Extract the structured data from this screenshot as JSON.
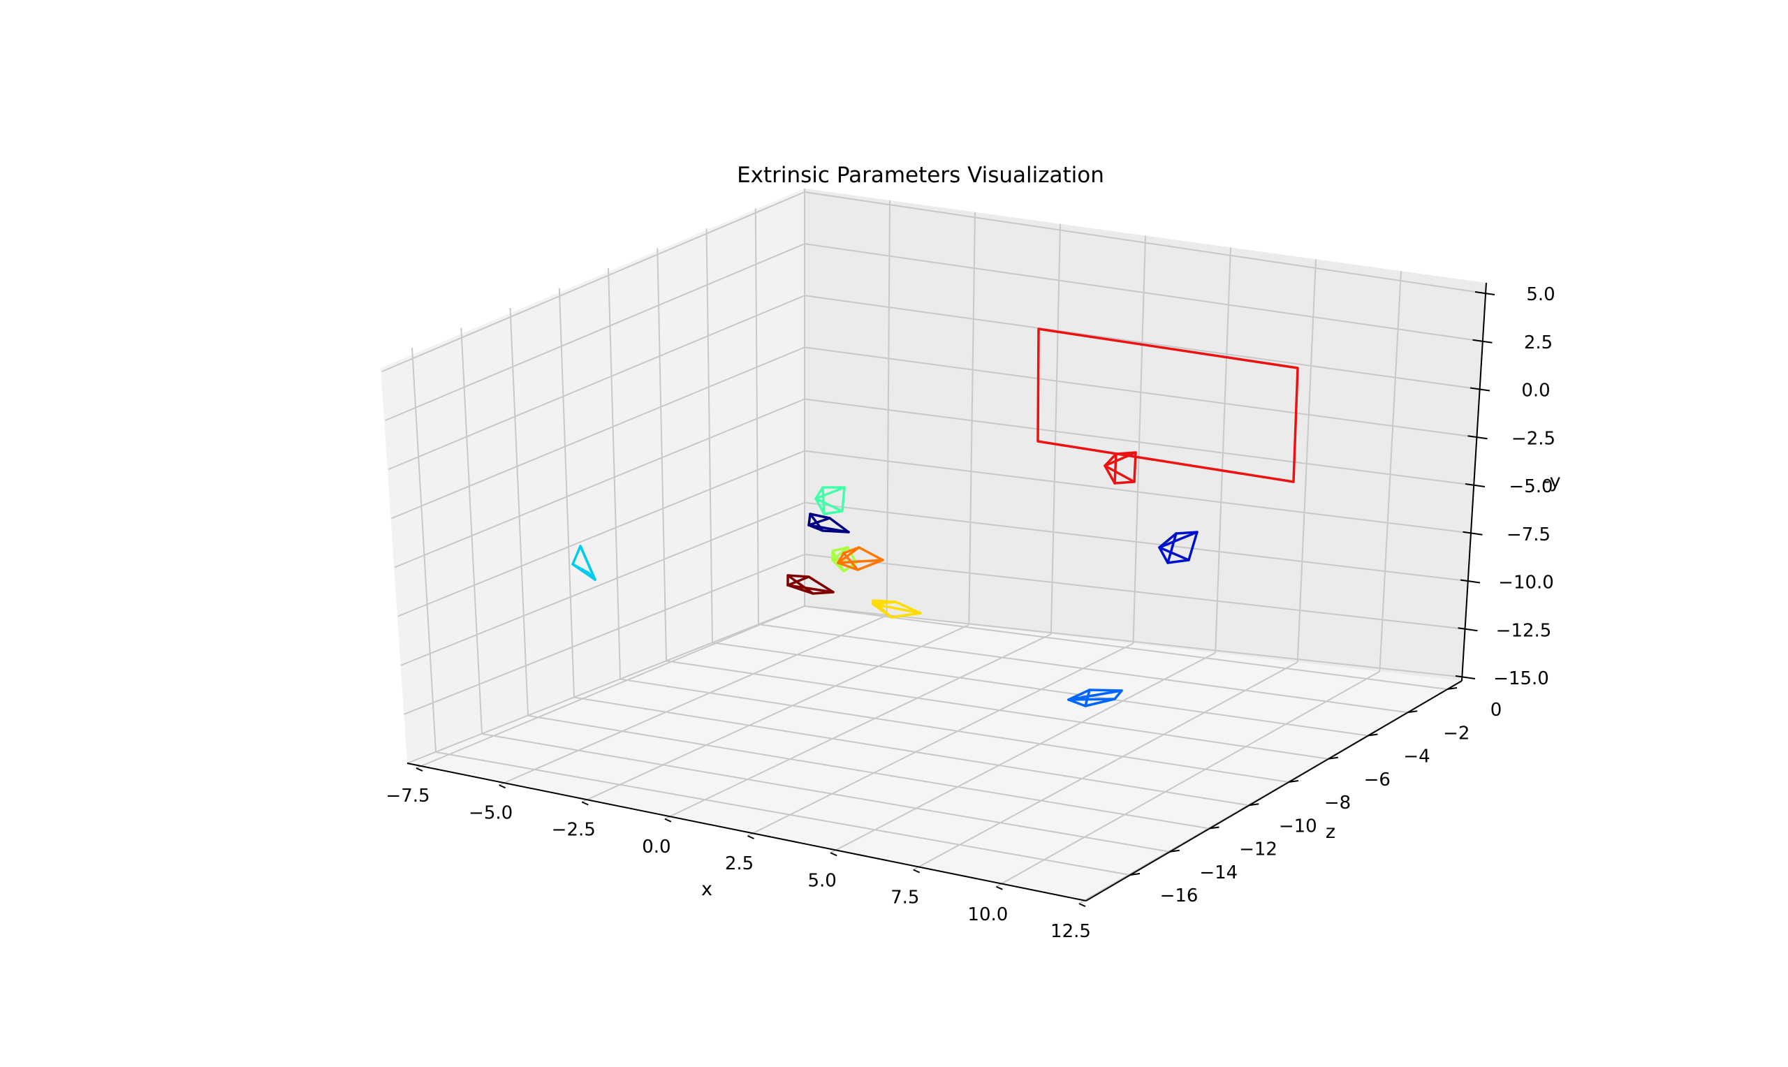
{
  "chart_data": {
    "type": "3d-wireframe",
    "title": "Extrinsic Parameters Visualization",
    "xlabel": "x",
    "zlabel": "z",
    "ylabel": "-y",
    "xlim": [
      -7.5,
      12.5
    ],
    "zlim": [
      -17,
      0
    ],
    "ylim": [
      -15,
      5
    ],
    "x_ticks": [
      "−7.5",
      "−5.0",
      "−2.5",
      "0.0",
      "2.5",
      "5.0",
      "7.5",
      "10.0",
      "12.5"
    ],
    "z_ticks": [
      "−16",
      "−14",
      "−12",
      "−10",
      "−8",
      "−6",
      "−4",
      "−2",
      "0"
    ],
    "y_ticks": [
      "−15.0",
      "−12.5",
      "−10.0",
      "−7.5",
      "−5.0",
      "−2.5",
      "0.0",
      "2.5",
      "5.0"
    ],
    "grid": true,
    "board": {
      "color": "#ee1111"
    },
    "cameras": [
      {
        "color": "#ee1111"
      },
      {
        "color": "#0011cc"
      },
      {
        "color": "#0066ff"
      },
      {
        "color": "#00ccee"
      },
      {
        "color": "#44ffaa"
      },
      {
        "color": "#000080"
      },
      {
        "color": "#aaff44"
      },
      {
        "color": "#ff7700"
      },
      {
        "color": "#800000"
      },
      {
        "color": "#ffdd00"
      }
    ]
  }
}
